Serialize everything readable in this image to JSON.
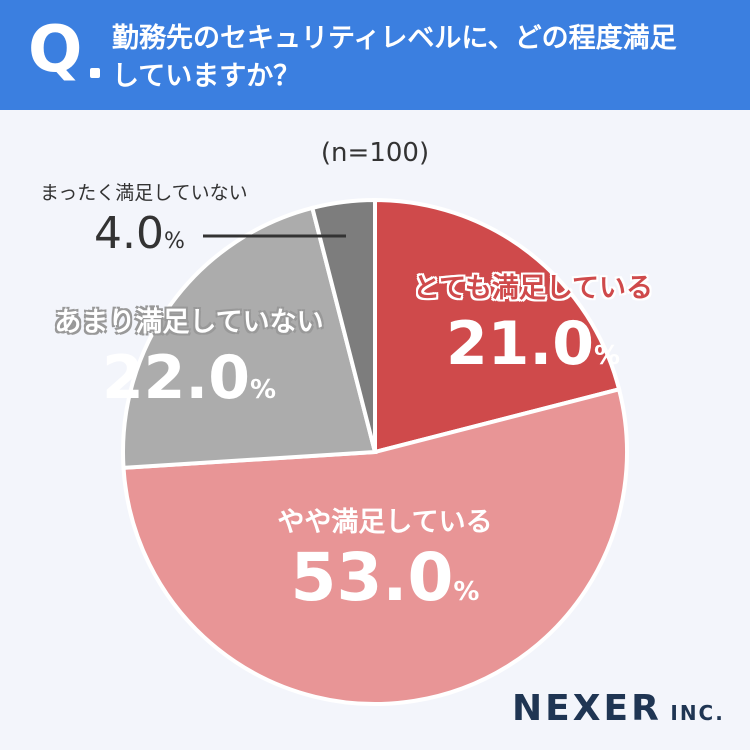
{
  "header": {
    "q_mark": "Q",
    "question_line1": "勤務先のセキュリティレベルに、どの程度満足",
    "question_line2": "していますか？"
  },
  "sample_size": "(n=100)",
  "pct_sign": "%",
  "logo": {
    "main": "NEXER",
    "suffix": "INC."
  },
  "colors": {
    "header_bg": "#3b7fe0",
    "very_satisfied": "#cf4a4b",
    "somewhat_satisfied": "#e89596",
    "not_very_satisfied": "#acacac",
    "not_at_all_satisfied": "#7d7d7d"
  },
  "chart_data": {
    "type": "pie",
    "title": "勤務先のセキュリティレベルに、どの程度満足していますか？",
    "n_label": "(n=100)",
    "slices": [
      {
        "label": "とても満足している",
        "value": 21.0,
        "value_text": "21.0",
        "color": "#cf4a4b"
      },
      {
        "label": "やや満足している",
        "value": 53.0,
        "value_text": "53.0",
        "color": "#e89596"
      },
      {
        "label": "あまり満足していない",
        "value": 22.0,
        "value_text": "22.0",
        "color": "#acacac"
      },
      {
        "label": "まったく満足していない",
        "value": 4.0,
        "value_text": "4.0",
        "color": "#7d7d7d"
      }
    ]
  }
}
